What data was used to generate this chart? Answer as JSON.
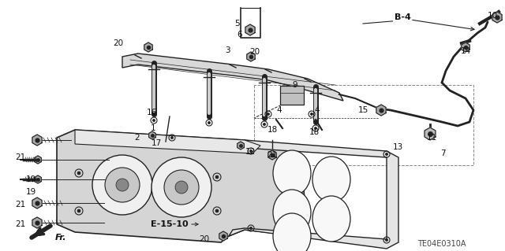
{
  "bg_color": "#ffffff",
  "line_color": "#222222",
  "label_color": "#111111",
  "diagram_code": "TE04E0310A",
  "figsize": [
    6.4,
    3.19
  ],
  "dpi": 100
}
